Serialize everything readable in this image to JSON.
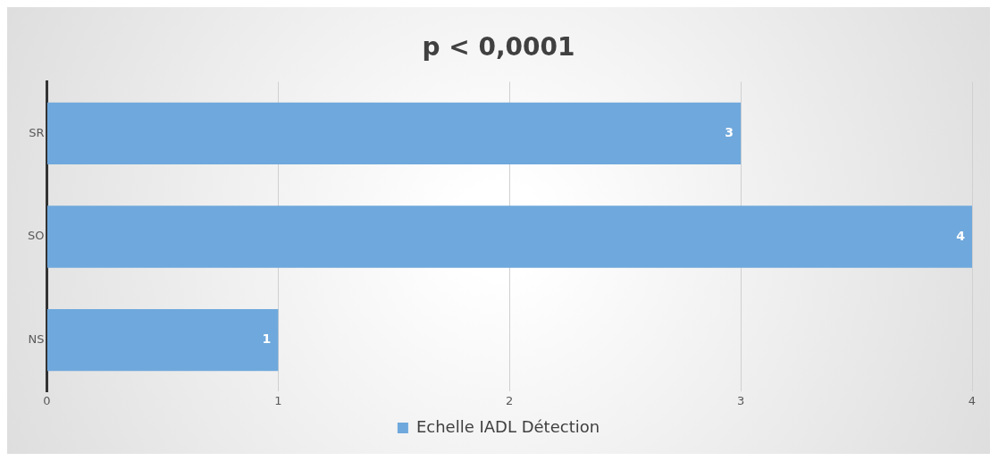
{
  "chart_data": {
    "type": "bar",
    "orientation": "horizontal",
    "title": "p < 0,0001",
    "categories": [
      "SR",
      "SO",
      "NS"
    ],
    "series": [
      {
        "name": "Echelle IADL Détection",
        "color": "#6fa8dc",
        "values": [
          3,
          4,
          1
        ]
      }
    ],
    "xlim": [
      0,
      4
    ],
    "xticks": [
      0,
      1,
      2,
      3,
      4
    ],
    "grid": "x",
    "legend": "bottom",
    "data_labels": true
  }
}
